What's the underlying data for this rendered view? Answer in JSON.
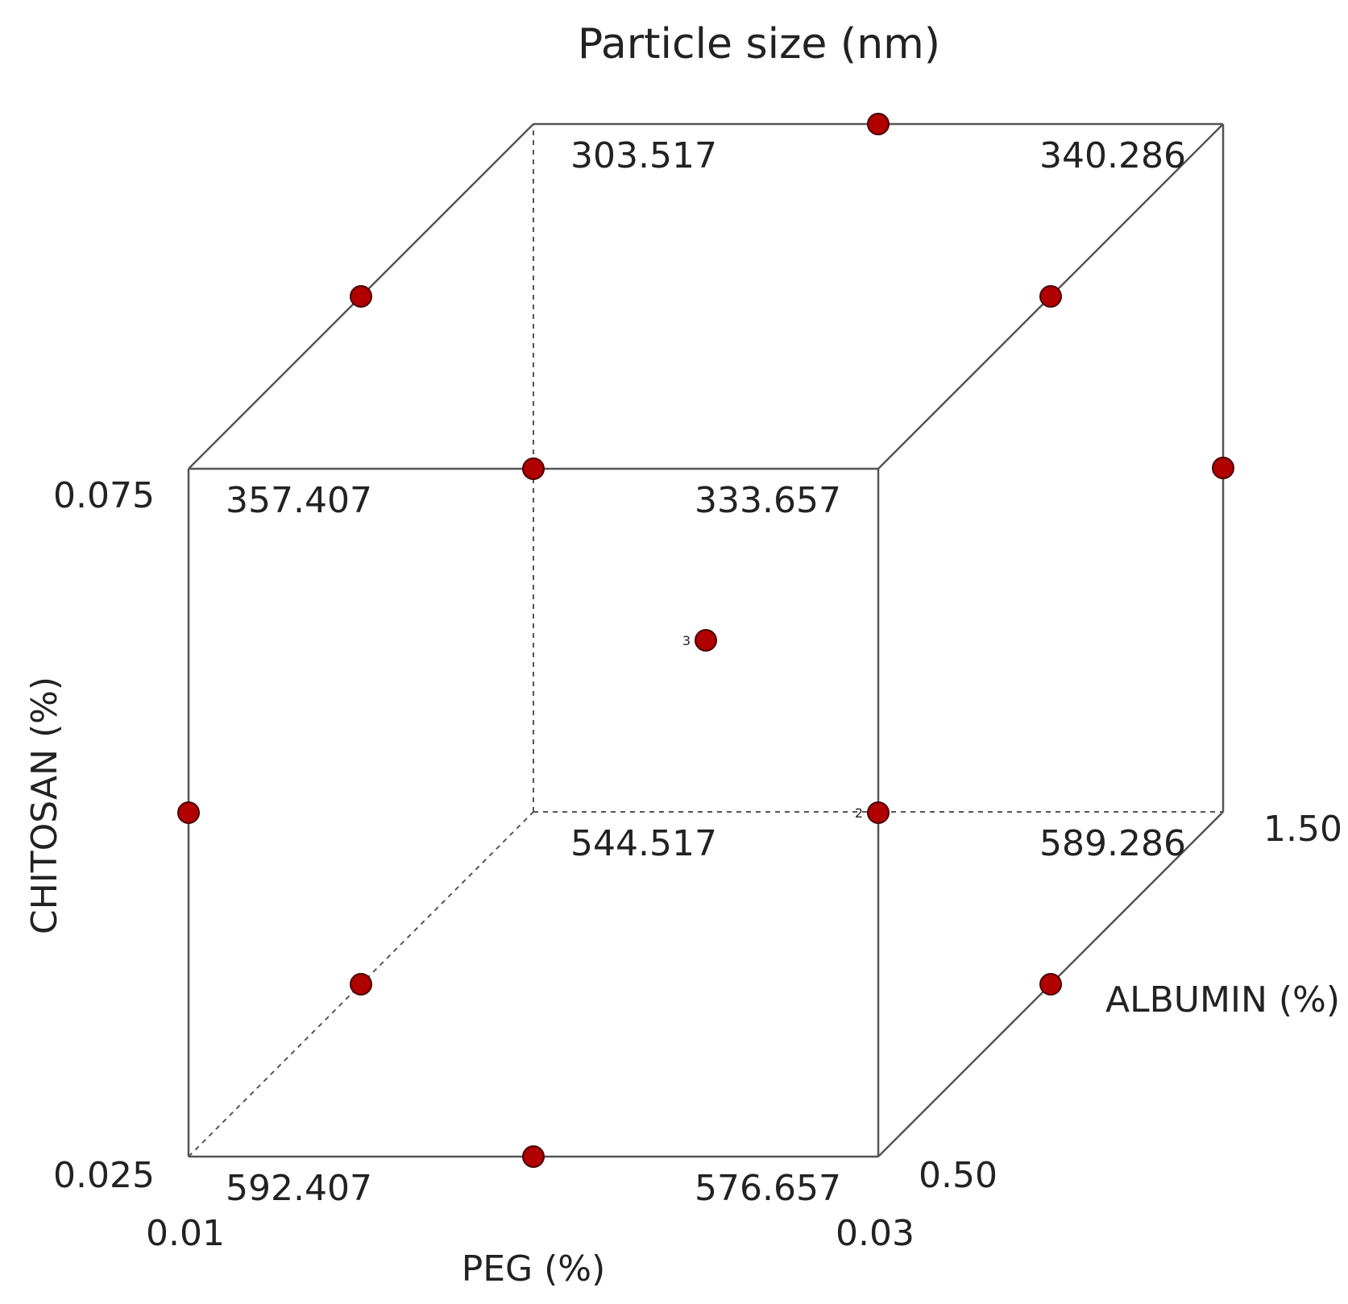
{
  "chart_data": {
    "type": "cube",
    "title": "Particle size  (nm)",
    "axes": {
      "x": {
        "label": "PEG (%)",
        "ticks": [
          "0.01",
          "0.03"
        ],
        "range": [
          0.01,
          0.03
        ]
      },
      "y": {
        "label": "CHITOSAN (%)",
        "ticks": [
          "0.025",
          "0.075"
        ],
        "range": [
          0.025,
          0.075
        ]
      },
      "z": {
        "label": "ALBUMIN (%)",
        "ticks": [
          "0.50",
          "1.50"
        ],
        "range": [
          0.5,
          1.5
        ]
      }
    },
    "corner_values": [
      {
        "peg": 0.01,
        "chitosan": 0.025,
        "albumin": 0.5,
        "value": "592.407"
      },
      {
        "peg": 0.03,
        "chitosan": 0.025,
        "albumin": 0.5,
        "value": "576.657"
      },
      {
        "peg": 0.01,
        "chitosan": 0.075,
        "albumin": 0.5,
        "value": "357.407"
      },
      {
        "peg": 0.03,
        "chitosan": 0.075,
        "albumin": 0.5,
        "value": "333.657"
      },
      {
        "peg": 0.01,
        "chitosan": 0.025,
        "albumin": 1.5,
        "value": "544.517"
      },
      {
        "peg": 0.03,
        "chitosan": 0.025,
        "albumin": 1.5,
        "value": "589.286"
      },
      {
        "peg": 0.01,
        "chitosan": 0.075,
        "albumin": 1.5,
        "value": "303.517"
      },
      {
        "peg": 0.03,
        "chitosan": 0.075,
        "albumin": 1.5,
        "value": "340.286"
      }
    ],
    "design_points": [
      {
        "peg": 0.02,
        "chitosan": 0.025,
        "albumin": 0.5
      },
      {
        "peg": 0.01,
        "chitosan": 0.05,
        "albumin": 0.5
      },
      {
        "peg": 0.02,
        "chitosan": 0.075,
        "albumin": 0.5
      },
      {
        "peg": 0.03,
        "chitosan": 0.05,
        "albumin": 0.5,
        "replicates": "2"
      },
      {
        "peg": 0.01,
        "chitosan": 0.025,
        "albumin": 1.0
      },
      {
        "peg": 0.03,
        "chitosan": 0.025,
        "albumin": 1.0
      },
      {
        "peg": 0.01,
        "chitosan": 0.075,
        "albumin": 1.0
      },
      {
        "peg": 0.03,
        "chitosan": 0.075,
        "albumin": 1.0
      },
      {
        "peg": 0.02,
        "chitosan": 0.05,
        "albumin": 1.0,
        "replicates": "3"
      },
      {
        "peg": 0.02,
        "chitosan": 0.075,
        "albumin": 1.5
      },
      {
        "peg": 0.03,
        "chitosan": 0.05,
        "albumin": 1.5
      }
    ],
    "colors": {
      "point": "#b00000",
      "edge": "#555555",
      "text": "#222222"
    }
  }
}
